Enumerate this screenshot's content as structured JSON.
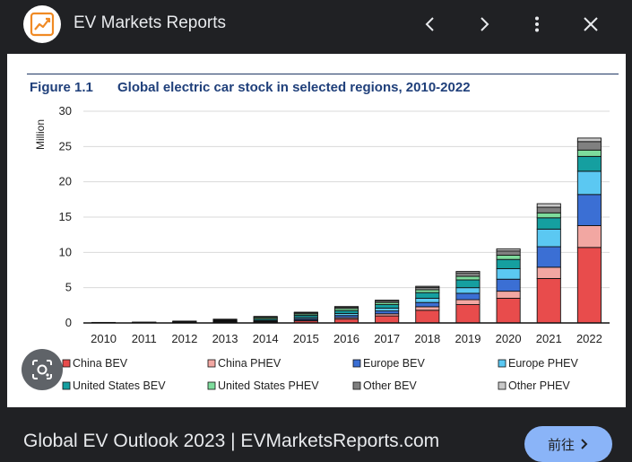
{
  "header": {
    "app_title": "EV Markets Reports",
    "icons": [
      "chart-logo-icon",
      "chevron-left-icon",
      "chevron-right-icon",
      "more-vert-icon",
      "close-icon"
    ]
  },
  "figure": {
    "label": "Figure 1.1",
    "title": "Global electric car stock in selected regions, 2010-2022"
  },
  "chart_data": {
    "type": "bar",
    "stacked": true,
    "title": "Global electric car stock in selected regions, 2010-2022",
    "ylabel": "Million",
    "xlabel": "",
    "ylim": [
      0,
      30
    ],
    "yticks": [
      0,
      5,
      10,
      15,
      20,
      25,
      30
    ],
    "grid": true,
    "legend_position": "bottom",
    "categories": [
      "2010",
      "2011",
      "2012",
      "2013",
      "2014",
      "2015",
      "2016",
      "2017",
      "2018",
      "2019",
      "2020",
      "2021",
      "2022"
    ],
    "series": [
      {
        "name": "China BEV",
        "color": "#e84c4c",
        "values": [
          0,
          0,
          0.02,
          0.05,
          0.1,
          0.3,
          0.55,
          1.0,
          1.8,
          2.6,
          3.5,
          6.3,
          10.7
        ]
      },
      {
        "name": "China PHEV",
        "color": "#f2a7a2",
        "values": [
          0,
          0,
          0,
          0.02,
          0.05,
          0.1,
          0.2,
          0.3,
          0.5,
          0.7,
          1.0,
          1.6,
          3.1
        ]
      },
      {
        "name": "Europe BEV",
        "color": "#3b6fd4",
        "values": [
          0,
          0.01,
          0.03,
          0.06,
          0.1,
          0.2,
          0.3,
          0.4,
          0.6,
          0.9,
          1.7,
          2.9,
          4.4
        ]
      },
      {
        "name": "Europe PHEV",
        "color": "#5bc8f2",
        "values": [
          0,
          0,
          0.02,
          0.05,
          0.1,
          0.2,
          0.3,
          0.4,
          0.6,
          0.8,
          1.5,
          2.5,
          3.3
        ]
      },
      {
        "name": "United States BEV",
        "color": "#159fa0",
        "values": [
          0,
          0.01,
          0.04,
          0.1,
          0.2,
          0.3,
          0.4,
          0.5,
          0.8,
          1.1,
          1.3,
          1.6,
          2.1
        ]
      },
      {
        "name": "United States PHEV",
        "color": "#7ddc9c",
        "values": [
          0,
          0.01,
          0.04,
          0.1,
          0.2,
          0.2,
          0.3,
          0.3,
          0.4,
          0.5,
          0.6,
          0.7,
          0.9
        ]
      },
      {
        "name": "Other BEV",
        "color": "#808080",
        "values": [
          0.01,
          0.02,
          0.04,
          0.08,
          0.1,
          0.15,
          0.2,
          0.25,
          0.35,
          0.5,
          0.6,
          0.8,
          1.2
        ]
      },
      {
        "name": "Other PHEV",
        "color": "#c8c8c8",
        "values": [
          0,
          0,
          0.01,
          0.02,
          0.05,
          0.05,
          0.05,
          0.05,
          0.15,
          0.2,
          0.3,
          0.5,
          0.5
        ]
      }
    ]
  },
  "lens": {
    "icon": "lens-icon"
  },
  "footer": {
    "source_title": "Global EV Outlook 2023 | EVMarketsReports.com",
    "visit_label": "前往"
  }
}
